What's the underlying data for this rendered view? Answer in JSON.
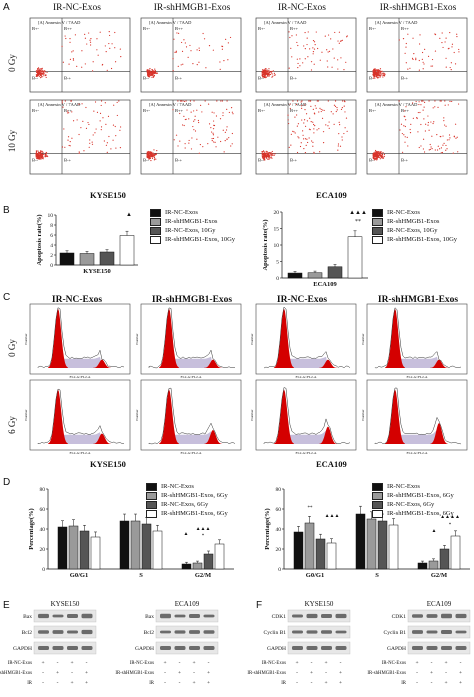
{
  "colors": {
    "dots": "#d8332a",
    "red_peak": "#d40000",
    "purple_fill": "#c7bfdc",
    "bar_black": "#111111",
    "bar_gray": "#9a9a9a",
    "bar_dark": "#555555",
    "bar_white": "#ffffff",
    "band": "#555555"
  },
  "panelA": {
    "letter": "A",
    "headers": [
      "IR-NC-Exos",
      "IR-shHMGB1-Exos",
      "IR-NC-Exos",
      "IR-shHMGB1-Exos"
    ],
    "rows": [
      "0 Gy",
      "10 Gy"
    ],
    "plot_title": "[A] Annexin V / 7AAD",
    "quadrants": [
      "B+-",
      "B++",
      "B--",
      "B-+"
    ],
    "cell_lines": [
      "KYSE150",
      "ECA109"
    ]
  },
  "panelB": {
    "letter": "B",
    "legend": [
      "IR-NC-Exos",
      "IR-shHMGB1-Exos",
      "IR-NC-Exos, 10Gy",
      "IR-shHMGB1-Exos, 10Gy"
    ],
    "left_marks": [
      "▲"
    ],
    "right_marks": [
      "▲▲▲",
      "**"
    ]
  },
  "panelC": {
    "letter": "C",
    "headers": [
      "IR-NC-Exos",
      "IR-shHMGB1-Exos",
      "IR-NC-Exos",
      "IR-shHMGB1-Exos"
    ],
    "rows": [
      "0 Gy",
      "6 Gy"
    ],
    "cell_lines": [
      "KYSE150",
      "ECA109"
    ],
    "axis_x": "FL2-A::FL2-A",
    "axis_y": "Number"
  },
  "panelD": {
    "letter": "D",
    "legend": [
      "IR-NC-Exos",
      "IR-shHMGB1-Exos, 6Gy",
      "IR-NC-Exos, 6Gy",
      "IR-shHMGB1-Exos, 6Gy"
    ],
    "left_marks_g2m": [
      "▲",
      "▲▲▲",
      "*"
    ],
    "right_marks_g0": [
      "**",
      "▲▲▲"
    ],
    "right_marks_g2m": [
      "▲",
      "▲▲▲▲",
      "*"
    ]
  },
  "chart_data": [
    {
      "type": "bar",
      "xlabel": "KYSE150",
      "ylabel": "Apoptosis rate(%)",
      "ylim": [
        0,
        10
      ],
      "yticks": [
        "0",
        "2",
        "4",
        "6",
        "8",
        "10"
      ],
      "series": [
        {
          "name": "IR-NC-Exos",
          "values": [
            2.4
          ]
        },
        {
          "name": "IR-shHMGB1-Exos",
          "values": [
            2.3
          ]
        },
        {
          "name": "IR-NC-Exos, 10Gy",
          "values": [
            2.6
          ]
        },
        {
          "name": "IR-shHMGB1-Exos, 10Gy",
          "values": [
            5.9
          ]
        }
      ]
    },
    {
      "type": "bar",
      "xlabel": "ECA109",
      "ylabel": "Apoptosis rate(%)",
      "ylim": [
        0,
        20
      ],
      "yticks": [
        "0",
        "5",
        "10",
        "15",
        "20"
      ],
      "series": [
        {
          "name": "IR-NC-Exos",
          "values": [
            1.5
          ]
        },
        {
          "name": "IR-shHMGB1-Exos",
          "values": [
            1.6
          ]
        },
        {
          "name": "IR-NC-Exos, 10Gy",
          "values": [
            3.4
          ]
        },
        {
          "name": "IR-shHMGB1-Exos, 10Gy",
          "values": [
            12.5
          ]
        }
      ]
    },
    {
      "type": "bar",
      "ylabel": "Percentage(%)",
      "ylim": [
        0,
        80
      ],
      "yticks": [
        "0",
        "20",
        "40",
        "60",
        "80"
      ],
      "categories": [
        "G0/G1",
        "S",
        "G2/M"
      ],
      "series": [
        {
          "name": "IR-NC-Exos",
          "values": [
            42,
            48,
            5
          ]
        },
        {
          "name": "IR-shHMGB1-Exos, 6Gy",
          "values": [
            43,
            48,
            6
          ]
        },
        {
          "name": "IR-NC-Exos, 6Gy",
          "values": [
            38,
            45,
            15
          ]
        },
        {
          "name": "IR-shHMGB1-Exos, 6Gy",
          "values": [
            32,
            38,
            25
          ]
        }
      ]
    },
    {
      "type": "bar",
      "ylabel": "Percentage(%)",
      "ylim": [
        0,
        80
      ],
      "yticks": [
        "0",
        "20",
        "40",
        "60",
        "80"
      ],
      "categories": [
        "G0/G1",
        "S",
        "G2/M"
      ],
      "series": [
        {
          "name": "IR-NC-Exos",
          "values": [
            37,
            55,
            6
          ]
        },
        {
          "name": "IR-shHMGB1-Exos, 6Gy",
          "values": [
            46,
            50,
            8
          ]
        },
        {
          "name": "IR-NC-Exos, 6Gy",
          "values": [
            30,
            48,
            20
          ]
        },
        {
          "name": "IR-shHMGB1-Exos, 6Gy",
          "values": [
            26,
            44,
            33
          ]
        }
      ]
    }
  ],
  "panelE": {
    "letter": "E",
    "left_title": "KYSE150",
    "right_title": "ECA109",
    "bands_left": [
      "Bax",
      "Bcl2",
      "GAPDH"
    ],
    "bands_right": [
      "Bax",
      "Bcl2",
      "GAPDH"
    ],
    "conds_left": [
      {
        "label": "IR-NC-Exos",
        "signs": [
          "+",
          "-",
          "+",
          "-"
        ]
      },
      {
        "label": "IR-shHMGB1-Exos",
        "signs": [
          "-",
          "+",
          "-",
          "+"
        ]
      },
      {
        "label": "IR",
        "signs": [
          "-",
          "-",
          "+",
          "+"
        ]
      }
    ],
    "conds_right": [
      {
        "label": "IR-NC-Exos",
        "signs": [
          "+",
          "-",
          "+",
          "-"
        ]
      },
      {
        "label": "IR-shHMGB1-Exos",
        "signs": [
          "-",
          "+",
          "-",
          "+"
        ]
      },
      {
        "label": "IR",
        "signs": [
          "-",
          "-",
          "+",
          "+"
        ]
      }
    ]
  },
  "panelF": {
    "letter": "F",
    "left_title": "KYSE150",
    "right_title": "ECA109",
    "bands_left": [
      "CDK1",
      "Cyclin B1",
      "GAPDH"
    ],
    "bands_right": [
      "CDK1",
      "Cyclin B1",
      "GAPDH"
    ],
    "conds_left": [
      {
        "label": "IR-NC-Exos",
        "signs": [
          "+",
          "-",
          "+",
          "-"
        ]
      },
      {
        "label": "IR-shHMGB1-Exos",
        "signs": [
          "-",
          "+",
          "-",
          "+"
        ]
      },
      {
        "label": "IR",
        "signs": [
          "-",
          "-",
          "+",
          "+"
        ]
      }
    ],
    "conds_right": [
      {
        "label": "IR-NC-Exos",
        "signs": [
          "+",
          "-",
          "+",
          "-"
        ]
      },
      {
        "label": "IR-shHMGB1-Exos",
        "signs": [
          "-",
          "+",
          "-",
          "+"
        ]
      },
      {
        "label": "IR",
        "signs": [
          "-",
          "-",
          "+",
          "+"
        ]
      }
    ]
  }
}
